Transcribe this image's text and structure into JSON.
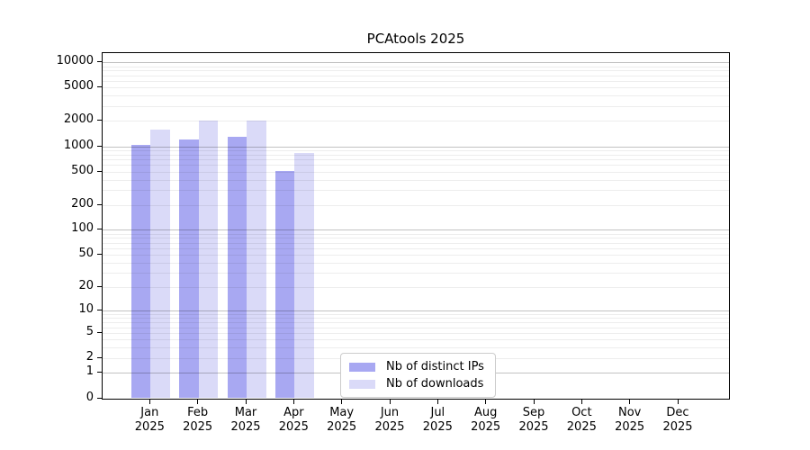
{
  "title": "PCAtools 2025",
  "chart_data": {
    "type": "bar",
    "title": "PCAtools 2025",
    "y_scale": "log10(1+v)",
    "ylim": [
      0,
      13000
    ],
    "grid": true,
    "legend_position": "lower center",
    "yticks": [
      0,
      1,
      2,
      5,
      10,
      20,
      50,
      100,
      200,
      500,
      1000,
      2000,
      5000,
      10000
    ],
    "major_gridlines": [
      1,
      10,
      100,
      1000,
      10000
    ],
    "categories": [
      {
        "month": "Jan",
        "year": "2025"
      },
      {
        "month": "Feb",
        "year": "2025"
      },
      {
        "month": "Mar",
        "year": "2025"
      },
      {
        "month": "Apr",
        "year": "2025"
      },
      {
        "month": "May",
        "year": "2025"
      },
      {
        "month": "Jun",
        "year": "2025"
      },
      {
        "month": "Jul",
        "year": "2025"
      },
      {
        "month": "Aug",
        "year": "2025"
      },
      {
        "month": "Sep",
        "year": "2025"
      },
      {
        "month": "Oct",
        "year": "2025"
      },
      {
        "month": "Nov",
        "year": "2025"
      },
      {
        "month": "Dec",
        "year": "2025"
      }
    ],
    "series": [
      {
        "name": "Nb of distinct IPs",
        "color": "#a8a8f2",
        "values": [
          1050,
          1210,
          1310,
          510,
          null,
          null,
          null,
          null,
          null,
          null,
          null,
          null
        ]
      },
      {
        "name": "Nb of downloads",
        "color": "#dadaf8",
        "values": [
          1600,
          2000,
          2000,
          830,
          null,
          null,
          null,
          null,
          null,
          null,
          null,
          null
        ]
      }
    ]
  }
}
